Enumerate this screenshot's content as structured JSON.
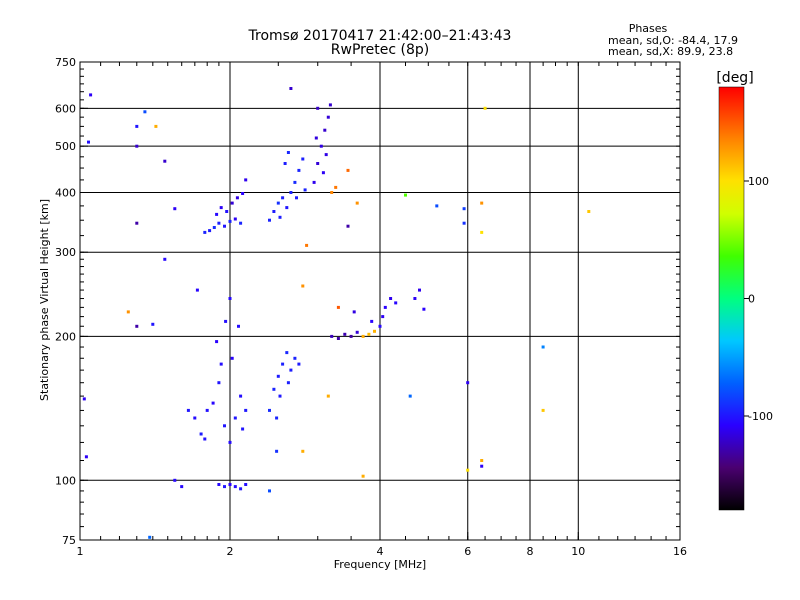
{
  "chart_data": {
    "type": "scatter",
    "title": "Tromsø 20170417 21:42:00–21:43:43",
    "subtitle": "RwPretec (8p)",
    "xlabel": "Frequency [MHz]",
    "ylabel": "Stationary phase Virtual Height [km]",
    "x_scale": "log",
    "y_scale": "log",
    "xlim": [
      1,
      16
    ],
    "ylim": [
      75,
      750
    ],
    "x_ticks": [
      1,
      2,
      4,
      6,
      8,
      10,
      16
    ],
    "y_ticks": [
      75,
      100,
      200,
      300,
      400,
      500,
      600,
      750
    ],
    "x_grid": [
      2,
      4,
      6,
      8,
      10
    ],
    "y_grid": [
      100,
      200,
      300,
      400,
      500,
      600
    ],
    "stats_header": "Phases",
    "stats_lines": [
      "mean, sd,O: -84.4, 17.9",
      "mean, sd,X:  89.9, 23.8"
    ],
    "colorbar": {
      "label": "[deg]",
      "range": [
        -180,
        180
      ],
      "ticks": [
        100,
        0,
        -100
      ]
    },
    "points": [
      {
        "x": 1.78,
        "y": 330,
        "p": -95
      },
      {
        "x": 1.82,
        "y": 333,
        "p": -98
      },
      {
        "x": 1.86,
        "y": 338,
        "p": -92
      },
      {
        "x": 1.9,
        "y": 345,
        "p": -96
      },
      {
        "x": 1.95,
        "y": 340,
        "p": -100
      },
      {
        "x": 2.0,
        "y": 348,
        "p": -95
      },
      {
        "x": 2.05,
        "y": 352,
        "p": -110
      },
      {
        "x": 2.1,
        "y": 345,
        "p": -94
      },
      {
        "x": 1.88,
        "y": 360,
        "p": -105
      },
      {
        "x": 1.92,
        "y": 372,
        "p": -110
      },
      {
        "x": 2.02,
        "y": 380,
        "p": -118
      },
      {
        "x": 2.07,
        "y": 390,
        "p": -115
      },
      {
        "x": 2.12,
        "y": 398,
        "p": -108
      },
      {
        "x": 2.15,
        "y": 425,
        "p": -112
      },
      {
        "x": 1.97,
        "y": 365,
        "p": -102
      },
      {
        "x": 2.4,
        "y": 350,
        "p": -95
      },
      {
        "x": 2.45,
        "y": 365,
        "p": -98
      },
      {
        "x": 2.5,
        "y": 380,
        "p": -90
      },
      {
        "x": 2.55,
        "y": 390,
        "p": -96
      },
      {
        "x": 2.6,
        "y": 372,
        "p": -100
      },
      {
        "x": 2.65,
        "y": 400,
        "p": -95
      },
      {
        "x": 2.7,
        "y": 420,
        "p": -92
      },
      {
        "x": 2.75,
        "y": 445,
        "p": -94
      },
      {
        "x": 2.8,
        "y": 470,
        "p": -96
      },
      {
        "x": 2.58,
        "y": 460,
        "p": -97
      },
      {
        "x": 2.62,
        "y": 485,
        "p": -93
      },
      {
        "x": 2.72,
        "y": 390,
        "p": -98
      },
      {
        "x": 2.83,
        "y": 405,
        "p": -95
      },
      {
        "x": 2.52,
        "y": 355,
        "p": -97
      },
      {
        "x": 2.95,
        "y": 420,
        "p": -112
      },
      {
        "x": 3.0,
        "y": 460,
        "p": -118
      },
      {
        "x": 3.05,
        "y": 500,
        "p": -115
      },
      {
        "x": 3.1,
        "y": 540,
        "p": -120
      },
      {
        "x": 3.15,
        "y": 575,
        "p": -118
      },
      {
        "x": 3.0,
        "y": 600,
        "p": -122
      },
      {
        "x": 2.98,
        "y": 520,
        "p": -116
      },
      {
        "x": 3.12,
        "y": 480,
        "p": -114
      },
      {
        "x": 3.08,
        "y": 440,
        "p": -110
      },
      {
        "x": 3.18,
        "y": 610,
        "p": -120
      },
      {
        "x": 3.2,
        "y": 400,
        "p": 135
      },
      {
        "x": 3.26,
        "y": 410,
        "p": 140
      },
      {
        "x": 3.45,
        "y": 445,
        "p": 145
      },
      {
        "x": 1.65,
        "y": 140,
        "p": -100
      },
      {
        "x": 1.7,
        "y": 135,
        "p": -104
      },
      {
        "x": 1.75,
        "y": 125,
        "p": -98
      },
      {
        "x": 1.8,
        "y": 140,
        "p": -102
      },
      {
        "x": 1.85,
        "y": 145,
        "p": -106
      },
      {
        "x": 1.9,
        "y": 160,
        "p": -100
      },
      {
        "x": 1.92,
        "y": 175,
        "p": -103
      },
      {
        "x": 1.88,
        "y": 195,
        "p": -108
      },
      {
        "x": 1.95,
        "y": 130,
        "p": -100
      },
      {
        "x": 2.0,
        "y": 120,
        "p": -104
      },
      {
        "x": 2.05,
        "y": 135,
        "p": -100
      },
      {
        "x": 2.1,
        "y": 150,
        "p": -103
      },
      {
        "x": 2.02,
        "y": 180,
        "p": -107
      },
      {
        "x": 2.08,
        "y": 210,
        "p": -103
      },
      {
        "x": 2.0,
        "y": 240,
        "p": -105
      },
      {
        "x": 1.96,
        "y": 215,
        "p": -103
      },
      {
        "x": 2.12,
        "y": 128,
        "p": -100
      },
      {
        "x": 2.15,
        "y": 140,
        "p": -99
      },
      {
        "x": 1.78,
        "y": 122,
        "p": -102
      },
      {
        "x": 1.72,
        "y": 250,
        "p": -106
      },
      {
        "x": 2.4,
        "y": 140,
        "p": -92
      },
      {
        "x": 2.45,
        "y": 155,
        "p": -95
      },
      {
        "x": 2.5,
        "y": 165,
        "p": -98
      },
      {
        "x": 2.55,
        "y": 175,
        "p": -96
      },
      {
        "x": 2.6,
        "y": 185,
        "p": -93
      },
      {
        "x": 2.65,
        "y": 170,
        "p": -97
      },
      {
        "x": 2.7,
        "y": 180,
        "p": -95
      },
      {
        "x": 2.52,
        "y": 150,
        "p": -99
      },
      {
        "x": 2.48,
        "y": 135,
        "p": -94
      },
      {
        "x": 2.62,
        "y": 160,
        "p": -96
      },
      {
        "x": 2.75,
        "y": 175,
        "p": -98
      },
      {
        "x": 3.2,
        "y": 200,
        "p": -125
      },
      {
        "x": 3.3,
        "y": 198,
        "p": -130
      },
      {
        "x": 3.4,
        "y": 202,
        "p": -128
      },
      {
        "x": 3.5,
        "y": 200,
        "p": -132
      },
      {
        "x": 3.6,
        "y": 204,
        "p": -118
      },
      {
        "x": 3.7,
        "y": 200,
        "p": 120
      },
      {
        "x": 3.8,
        "y": 202,
        "p": 115
      },
      {
        "x": 3.9,
        "y": 205,
        "p": 118
      },
      {
        "x": 4.0,
        "y": 210,
        "p": -105
      },
      {
        "x": 4.05,
        "y": 220,
        "p": -110
      },
      {
        "x": 4.1,
        "y": 230,
        "p": -108
      },
      {
        "x": 4.2,
        "y": 240,
        "p": -112
      },
      {
        "x": 4.3,
        "y": 235,
        "p": -106
      },
      {
        "x": 4.7,
        "y": 240,
        "p": -110
      },
      {
        "x": 4.8,
        "y": 250,
        "p": -112
      },
      {
        "x": 4.9,
        "y": 228,
        "p": -108
      },
      {
        "x": 3.55,
        "y": 225,
        "p": -115
      },
      {
        "x": 3.85,
        "y": 215,
        "p": -107
      },
      {
        "x": 1.9,
        "y": 98,
        "p": -105
      },
      {
        "x": 1.95,
        "y": 97,
        "p": -100
      },
      {
        "x": 2.0,
        "y": 98,
        "p": -108
      },
      {
        "x": 2.05,
        "y": 97,
        "p": -104
      },
      {
        "x": 2.1,
        "y": 96,
        "p": -100
      },
      {
        "x": 2.15,
        "y": 98,
        "p": -103
      },
      {
        "x": 1.05,
        "y": 640,
        "p": -110
      },
      {
        "x": 1.04,
        "y": 510,
        "p": -102
      },
      {
        "x": 1.3,
        "y": 550,
        "p": -100
      },
      {
        "x": 1.3,
        "y": 500,
        "p": -120
      },
      {
        "x": 1.35,
        "y": 590,
        "p": -80
      },
      {
        "x": 1.42,
        "y": 550,
        "p": 120
      },
      {
        "x": 1.48,
        "y": 465,
        "p": -120
      },
      {
        "x": 1.55,
        "y": 370,
        "p": -110
      },
      {
        "x": 1.48,
        "y": 290,
        "p": -105
      },
      {
        "x": 1.3,
        "y": 345,
        "p": -130
      },
      {
        "x": 1.25,
        "y": 225,
        "p": 130
      },
      {
        "x": 1.3,
        "y": 210,
        "p": -130
      },
      {
        "x": 1.4,
        "y": 212,
        "p": -100
      },
      {
        "x": 1.02,
        "y": 148,
        "p": -110
      },
      {
        "x": 1.03,
        "y": 112,
        "p": -110
      },
      {
        "x": 1.38,
        "y": 76,
        "p": -70
      },
      {
        "x": 1.55,
        "y": 100,
        "p": -105
      },
      {
        "x": 1.6,
        "y": 97,
        "p": -105
      },
      {
        "x": 2.4,
        "y": 95,
        "p": -80
      },
      {
        "x": 2.48,
        "y": 115,
        "p": -90
      },
      {
        "x": 2.65,
        "y": 660,
        "p": -120
      },
      {
        "x": 2.85,
        "y": 310,
        "p": 140
      },
      {
        "x": 2.8,
        "y": 255,
        "p": 130
      },
      {
        "x": 3.3,
        "y": 230,
        "p": 150
      },
      {
        "x": 3.15,
        "y": 150,
        "p": 120
      },
      {
        "x": 3.6,
        "y": 380,
        "p": 130
      },
      {
        "x": 3.45,
        "y": 340,
        "p": -130
      },
      {
        "x": 4.5,
        "y": 395,
        "p": 40
      },
      {
        "x": 5.2,
        "y": 375,
        "p": -80
      },
      {
        "x": 5.9,
        "y": 370,
        "p": -85
      },
      {
        "x": 5.9,
        "y": 345,
        "p": -90
      },
      {
        "x": 6.4,
        "y": 380,
        "p": 130
      },
      {
        "x": 6.4,
        "y": 330,
        "p": 100
      },
      {
        "x": 6.0,
        "y": 160,
        "p": -110
      },
      {
        "x": 6.0,
        "y": 105,
        "p": 100
      },
      {
        "x": 6.4,
        "y": 110,
        "p": 120
      },
      {
        "x": 6.4,
        "y": 107,
        "p": -110
      },
      {
        "x": 8.5,
        "y": 190,
        "p": -60
      },
      {
        "x": 8.5,
        "y": 140,
        "p": 110
      },
      {
        "x": 10.5,
        "y": 365,
        "p": 110
      },
      {
        "x": 4.6,
        "y": 150,
        "p": -70
      },
      {
        "x": 3.7,
        "y": 102,
        "p": 120
      },
      {
        "x": 2.8,
        "y": 115,
        "p": 120
      },
      {
        "x": 6.5,
        "y": 600,
        "p": 100
      }
    ]
  }
}
